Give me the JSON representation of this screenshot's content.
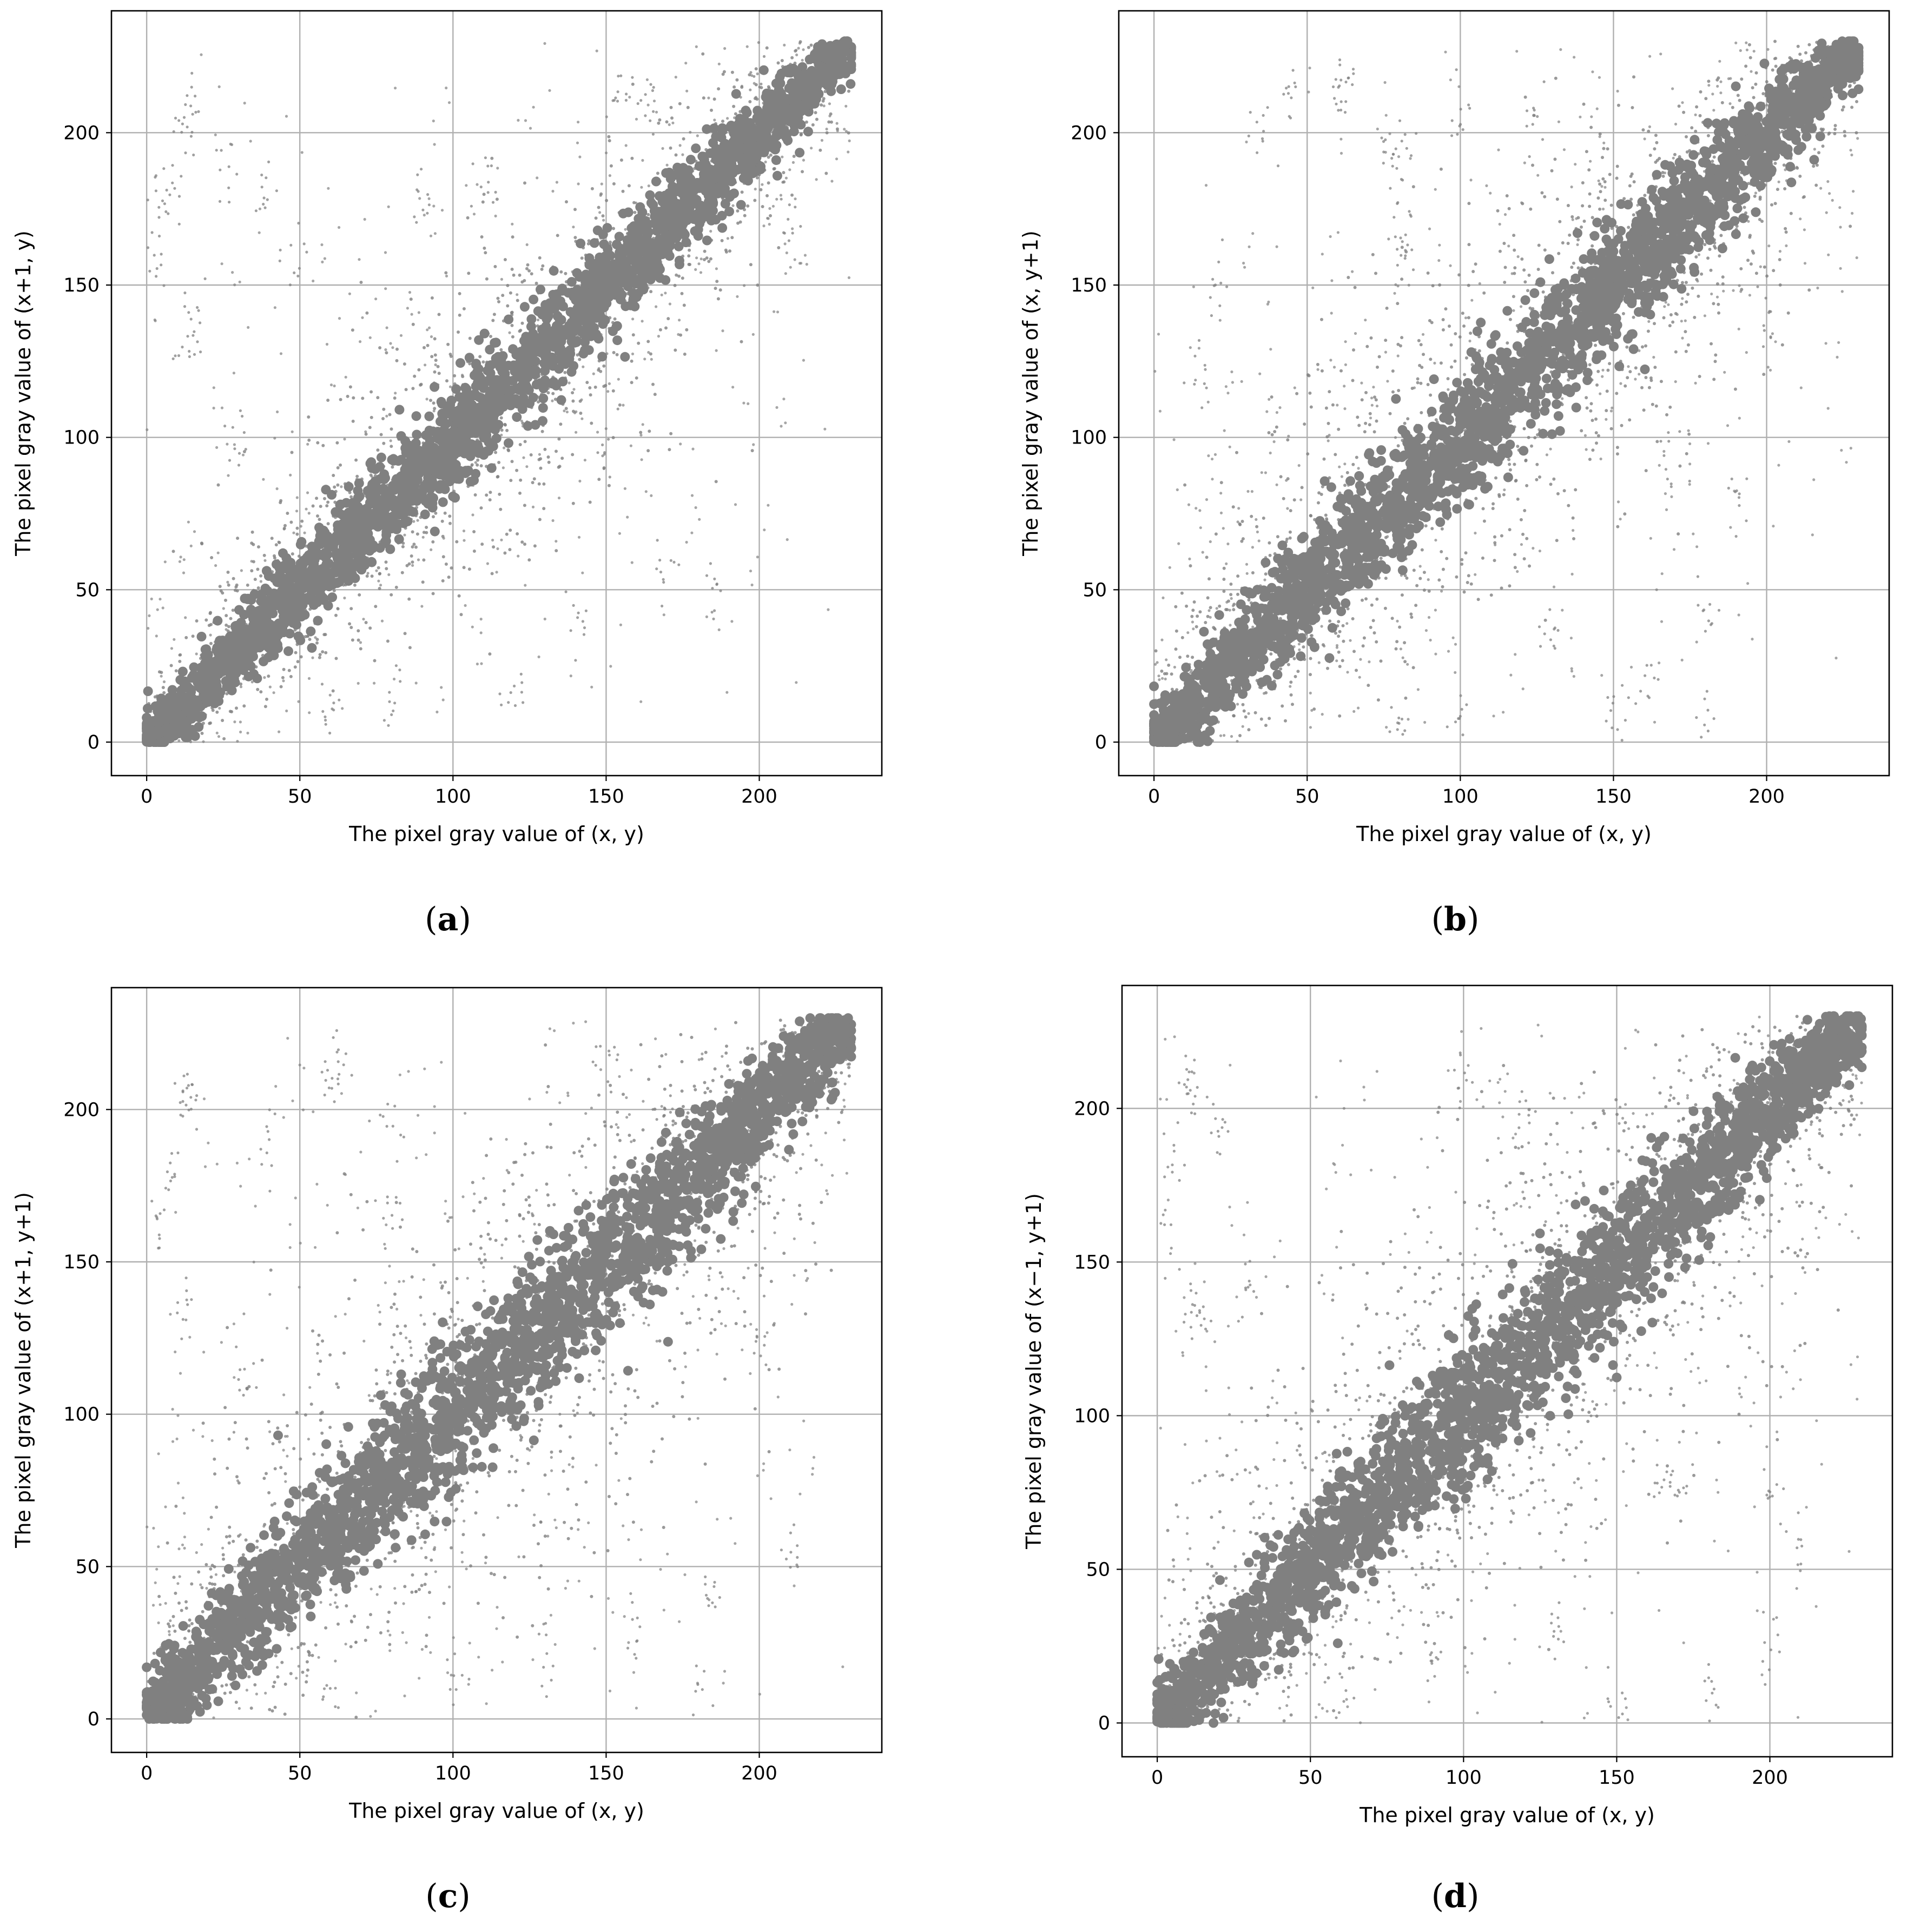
{
  "colors": {
    "points": "#808080",
    "grid": "#b0b0b0"
  },
  "chart_data": [
    {
      "type": "scatter",
      "panel_label": "a",
      "caption_open": "(",
      "caption_close": ")",
      "xlabel": "The pixel gray value of (x, y)",
      "ylabel": "The pixel gray value of (x+1, y)",
      "xlim": [
        -11.5,
        240
      ],
      "ylim": [
        -11,
        240
      ],
      "xticks": [
        0,
        50,
        100,
        150,
        200
      ],
      "yticks": [
        0,
        50,
        100,
        150,
        200
      ],
      "grid": true,
      "trend": {
        "x": [
          0,
          229
        ],
        "y": [
          0,
          229
        ]
      },
      "point_spread": 7,
      "outliers": [
        [
          2,
          160
        ],
        [
          4,
          182
        ],
        [
          8,
          178
        ],
        [
          12,
          207
        ],
        [
          14,
          205
        ],
        [
          13,
          132
        ],
        [
          15,
          139
        ],
        [
          25,
          190
        ],
        [
          38,
          178
        ],
        [
          48,
          160
        ],
        [
          90,
          180
        ],
        [
          110,
          183
        ],
        [
          155,
          213
        ],
        [
          165,
          210
        ],
        [
          200,
          218
        ],
        [
          210,
          170
        ],
        [
          170,
          60
        ],
        [
          185,
          50
        ],
        [
          150,
          95
        ],
        [
          140,
          40
        ],
        [
          120,
          20
        ],
        [
          80,
          15
        ],
        [
          60,
          10
        ],
        [
          30,
          100
        ]
      ]
    },
    {
      "type": "scatter",
      "panel_label": "b",
      "caption_open": "(",
      "caption_close": ")",
      "xlabel": "The pixel gray value of (x, y)",
      "ylabel": "The pixel gray value of (x, y+1)",
      "xlim": [
        -11.5,
        240
      ],
      "ylim": [
        -11,
        240
      ],
      "xticks": [
        0,
        50,
        100,
        150,
        200
      ],
      "yticks": [
        0,
        50,
        100,
        150,
        200
      ],
      "grid": true,
      "trend": {
        "x": [
          0,
          229
        ],
        "y": [
          0,
          229
        ]
      },
      "point_spread": 9,
      "outliers": [
        [
          60,
          215
        ],
        [
          62,
          212
        ],
        [
          80,
          192
        ],
        [
          78,
          195
        ],
        [
          82,
          168
        ],
        [
          80,
          165
        ],
        [
          20,
          150
        ],
        [
          15,
          120
        ],
        [
          35,
          200
        ],
        [
          45,
          210
        ],
        [
          100,
          205
        ],
        [
          125,
          205
        ],
        [
          180,
          43
        ],
        [
          190,
          80
        ],
        [
          180,
          5
        ],
        [
          150,
          8
        ],
        [
          160,
          20
        ],
        [
          130,
          30
        ],
        [
          170,
          90
        ],
        [
          200,
          140
        ],
        [
          100,
          5
        ],
        [
          80,
          2
        ]
      ]
    },
    {
      "type": "scatter",
      "panel_label": "c",
      "caption_open": "(",
      "caption_close": ")",
      "xlabel": "The pixel gray value of (x, y)",
      "ylabel": "The pixel gray value of (x+1, y+1)",
      "xlim": [
        -11.5,
        240
      ],
      "ylim": [
        -11,
        240
      ],
      "xticks": [
        0,
        50,
        100,
        150,
        200
      ],
      "yticks": [
        0,
        50,
        100,
        150,
        200
      ],
      "grid": true,
      "trend": {
        "x": [
          0,
          229
        ],
        "y": [
          0,
          229
        ]
      },
      "point_spread": 10,
      "outliers": [
        [
          4,
          160
        ],
        [
          8,
          178
        ],
        [
          12,
          207
        ],
        [
          14,
          205
        ],
        [
          13,
          135
        ],
        [
          60,
          215
        ],
        [
          62,
          210
        ],
        [
          78,
          195
        ],
        [
          80,
          165
        ],
        [
          150,
          215
        ],
        [
          170,
          200
        ],
        [
          200,
          125
        ],
        [
          210,
          55
        ],
        [
          185,
          45
        ],
        [
          180,
          7
        ],
        [
          160,
          30
        ],
        [
          130,
          20
        ],
        [
          100,
          10
        ],
        [
          60,
          5
        ],
        [
          30,
          110
        ],
        [
          40,
          190
        ]
      ]
    },
    {
      "type": "scatter",
      "panel_label": "d",
      "caption_open": "(",
      "caption_close": ")",
      "xlabel": "The pixel gray value of (x, y)",
      "ylabel": "The pixel gray value of (x−1, y+1)",
      "xlim": [
        -11.5,
        240
      ],
      "ylim": [
        -11,
        240
      ],
      "xticks": [
        0,
        50,
        100,
        150,
        200
      ],
      "yticks": [
        0,
        50,
        100,
        150,
        200
      ],
      "grid": true,
      "trend": {
        "x": [
          0,
          229
        ],
        "y": [
          0,
          229
        ]
      },
      "point_spread": 10,
      "outliers": [
        [
          2,
          160
        ],
        [
          6,
          180
        ],
        [
          10,
          208
        ],
        [
          12,
          205
        ],
        [
          12,
          130
        ],
        [
          14,
          135
        ],
        [
          20,
          195
        ],
        [
          30,
          140
        ],
        [
          100,
          210
        ],
        [
          120,
          200
        ],
        [
          165,
          80
        ],
        [
          170,
          78
        ],
        [
          200,
          75
        ],
        [
          210,
          60
        ],
        [
          200,
          25
        ],
        [
          180,
          10
        ],
        [
          150,
          5
        ],
        [
          130,
          30
        ],
        [
          90,
          20
        ],
        [
          60,
          8
        ]
      ]
    }
  ]
}
